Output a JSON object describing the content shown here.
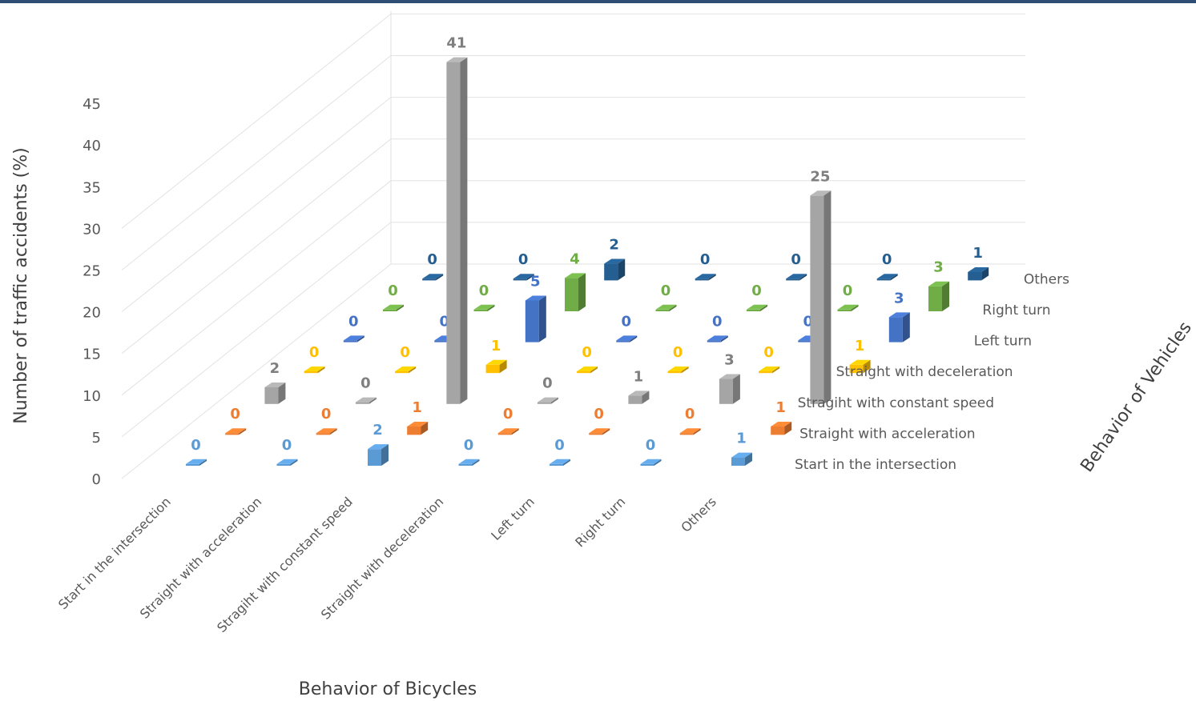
{
  "chart_data": {
    "type": "bar",
    "subtype": "3d-column",
    "xlabel": "Behavior of Bicycles",
    "ylabel": "Number of traffic accidents (%)",
    "zlabel": "Behavior of Vehicles",
    "ylim": [
      0,
      45
    ],
    "yticks": [
      "0",
      "5",
      "10",
      "15",
      "20",
      "25",
      "30",
      "35",
      "40",
      "45"
    ],
    "grid": true,
    "legend": "none",
    "categories": [
      "Start in the intersection",
      "Straight with acceleration",
      "Stragiht with constant speed",
      "Straight with deceleration",
      "Left turn",
      "Right turn",
      "Others"
    ],
    "series": [
      {
        "name": "Start in the intersection",
        "color": "#5b9bd5",
        "label_color": "#5b9bd5",
        "values": [
          0,
          0,
          2,
          0,
          0,
          0,
          1
        ]
      },
      {
        "name": "Straight with acceleration",
        "color": "#ed7d31",
        "label_color": "#ed7d31",
        "values": [
          0,
          0,
          1,
          0,
          0,
          0,
          1
        ]
      },
      {
        "name": "Stragiht with constant speed",
        "color": "#a5a5a5",
        "label_color": "#7f7f7f",
        "values": [
          2,
          0,
          41,
          0,
          1,
          3,
          25
        ]
      },
      {
        "name": "Straight with deceleration",
        "color": "#ffc000",
        "label_color": "#ffc000",
        "values": [
          0,
          0,
          1,
          0,
          0,
          0,
          1
        ]
      },
      {
        "name": "Left turn",
        "color": "#4472c4",
        "label_color": "#4472c4",
        "values": [
          0,
          0,
          5,
          0,
          0,
          0,
          3
        ]
      },
      {
        "name": "Right turn",
        "color": "#70ad47",
        "label_color": "#70ad47",
        "values": [
          0,
          0,
          4,
          0,
          0,
          0,
          3
        ]
      },
      {
        "name": "Others",
        "color": "#255e91",
        "label_color": "#255e91",
        "values": [
          0,
          0,
          2,
          0,
          0,
          0,
          1
        ]
      }
    ]
  }
}
